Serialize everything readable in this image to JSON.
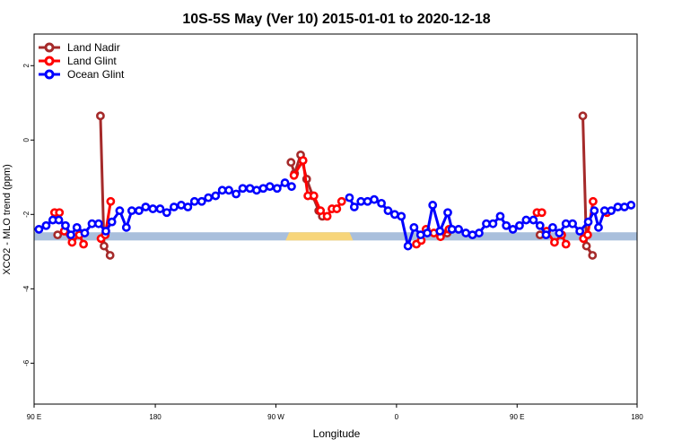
{
  "chart_data": {
    "type": "line",
    "title": "10S-5S May (Ver 10)   2015-01-01 to 2020-12-18",
    "xlabel": "Longitude",
    "ylabel": "XCO2 - MLO trend (ppm)",
    "xlim": [
      0,
      100
    ],
    "ylim": [
      -7.1,
      2.85
    ],
    "x_ticks": [
      {
        "v": 0,
        "label": "90 E"
      },
      {
        "v": 20.1,
        "label": "180"
      },
      {
        "v": 40.1,
        "label": "90 W"
      },
      {
        "v": 60.1,
        "label": "0"
      },
      {
        "v": 80.1,
        "label": "90 E"
      },
      {
        "v": 100,
        "label": "180"
      }
    ],
    "y_ticks": [
      {
        "v": 2,
        "label": "2"
      },
      {
        "v": 0,
        "label": "0"
      },
      {
        "v": -2,
        "label": "-2"
      },
      {
        "v": -4,
        "label": "-4"
      },
      {
        "v": -6,
        "label": "-6"
      }
    ],
    "legend": {
      "position": "top-left",
      "items": [
        {
          "label": "Land Nadir",
          "color": "#a52a2a"
        },
        {
          "label": "Land Glint",
          "color": "#ff0000"
        },
        {
          "label": "Ocean Glint",
          "color": "#0000ff"
        }
      ]
    },
    "band": {
      "y_range": [
        -2.7,
        -2.48
      ],
      "color": "#a9bfdc",
      "highlight_color": "#f7d57a",
      "highlights": [
        [
          42.3,
          52.3
        ]
      ]
    },
    "series": [
      {
        "name": "Land Nadir",
        "color": "#a52a2a",
        "segments": [
          {
            "x": [
              3.9
            ],
            "y": [
              -2.55
            ]
          },
          {
            "x": [
              11.0,
              11.6,
              12.6
            ],
            "y": [
              0.65,
              -2.85,
              -3.1
            ]
          },
          {
            "x": [
              42.6,
              43.2,
              44.2,
              45.2,
              46.2,
              47.2,
              47.8
            ],
            "y": [
              -0.6,
              -0.9,
              -0.4,
              -1.05,
              -1.5,
              -1.9,
              -2.05
            ]
          },
          {
            "x": [
              68.5
            ],
            "y": [
              -2.5
            ]
          },
          {
            "x": [
              83.9
            ],
            "y": [
              -2.55
            ]
          },
          {
            "x": [
              91.0,
              91.6,
              92.6
            ],
            "y": [
              0.65,
              -2.85,
              -3.1
            ]
          }
        ]
      },
      {
        "name": "Land Glint",
        "color": "#ff0000",
        "segments": [
          {
            "x": [
              3.4,
              4.2
            ],
            "y": [
              -1.95,
              -1.95
            ]
          },
          {
            "x": [
              5.0,
              6.3,
              7.5,
              8.2
            ],
            "y": [
              -2.45,
              -2.75,
              -2.55,
              -2.8
            ]
          },
          {
            "x": [
              11.1,
              11.8,
              12.7
            ],
            "y": [
              -2.65,
              -2.55,
              -1.65
            ]
          },
          {
            "x": [
              43.1,
              44.6,
              45.4,
              46.4,
              47.5,
              48.6,
              49.4,
              50.2,
              51.0
            ],
            "y": [
              -0.95,
              -0.55,
              -1.5,
              -1.5,
              -1.9,
              -2.05,
              -1.85,
              -1.85,
              -1.65
            ]
          },
          {
            "x": [
              63.4,
              64.2,
              65.0,
              66.3,
              67.4,
              68.8
            ],
            "y": [
              -2.8,
              -2.7,
              -2.4,
              -2.5,
              -2.6,
              -2.4
            ]
          },
          {
            "x": [
              83.4,
              84.2
            ],
            "y": [
              -1.95,
              -1.95
            ]
          },
          {
            "x": [
              85.0,
              86.3,
              87.5,
              88.2
            ],
            "y": [
              -2.45,
              -2.75,
              -2.55,
              -2.8
            ]
          },
          {
            "x": [
              91.1,
              91.8,
              92.7
            ],
            "y": [
              -2.65,
              -2.55,
              -1.65
            ]
          },
          {
            "x": [
              95.0
            ],
            "y": [
              -1.95
            ]
          }
        ]
      },
      {
        "name": "Ocean Glint",
        "color": "#0000ff",
        "segments": [
          {
            "x": [
              0.8,
              2.0,
              3.1,
              4.1,
              5.2,
              6.1,
              7.1,
              8.4,
              9.6,
              10.7,
              11.9,
              12.9,
              14.2,
              15.3,
              16.2,
              17.4,
              18.5,
              19.7,
              20.9,
              22.0,
              23.2,
              24.4,
              25.5,
              26.6,
              27.8,
              28.9,
              30.1,
              31.2,
              32.3,
              33.5,
              34.6,
              35.8,
              36.9,
              38.0,
              39.1,
              40.3,
              41.6,
              42.7
            ],
            "y": [
              -2.4,
              -2.3,
              -2.15,
              -2.15,
              -2.3,
              -2.55,
              -2.35,
              -2.5,
              -2.25,
              -2.25,
              -2.45,
              -2.2,
              -1.9,
              -2.35,
              -1.9,
              -1.9,
              -1.8,
              -1.85,
              -1.85,
              -1.95,
              -1.8,
              -1.75,
              -1.8,
              -1.65,
              -1.65,
              -1.55,
              -1.5,
              -1.35,
              -1.35,
              -1.45,
              -1.3,
              -1.3,
              -1.35,
              -1.3,
              -1.25,
              -1.3,
              -1.15,
              -1.25
            ]
          },
          {
            "x": [
              52.3,
              53.1,
              54.2,
              55.3,
              56.4,
              57.6,
              58.7,
              59.8,
              60.9,
              62.0,
              63.0,
              64.1,
              65.2,
              66.1,
              67.3,
              68.6,
              69.3,
              70.4,
              71.6,
              72.7,
              73.8,
              75.0,
              76.1,
              77.3,
              78.3,
              79.4,
              80.5,
              81.6,
              82.8,
              83.9,
              84.9,
              86.0,
              87.1,
              88.2,
              89.3,
              90.5,
              91.9,
              92.9,
              93.6,
              94.6,
              95.7,
              96.8,
              97.9,
              99.0
            ],
            "y": [
              -1.55,
              -1.8,
              -1.65,
              -1.65,
              -1.6,
              -1.7,
              -1.9,
              -2.0,
              -2.05,
              -2.85,
              -2.35,
              -2.55,
              -2.5,
              -1.75,
              -2.45,
              -1.95,
              -2.4,
              -2.4,
              -2.5,
              -2.55,
              -2.5,
              -2.25,
              -2.25,
              -2.05,
              -2.3,
              -2.4,
              -2.3,
              -2.15,
              -2.15,
              -2.3,
              -2.55,
              -2.35,
              -2.5,
              -2.25,
              -2.25,
              -2.45,
              -2.2,
              -1.9,
              -2.35,
              -1.9,
              -1.9,
              -1.8,
              -1.8,
              -1.75
            ]
          }
        ]
      }
    ]
  }
}
